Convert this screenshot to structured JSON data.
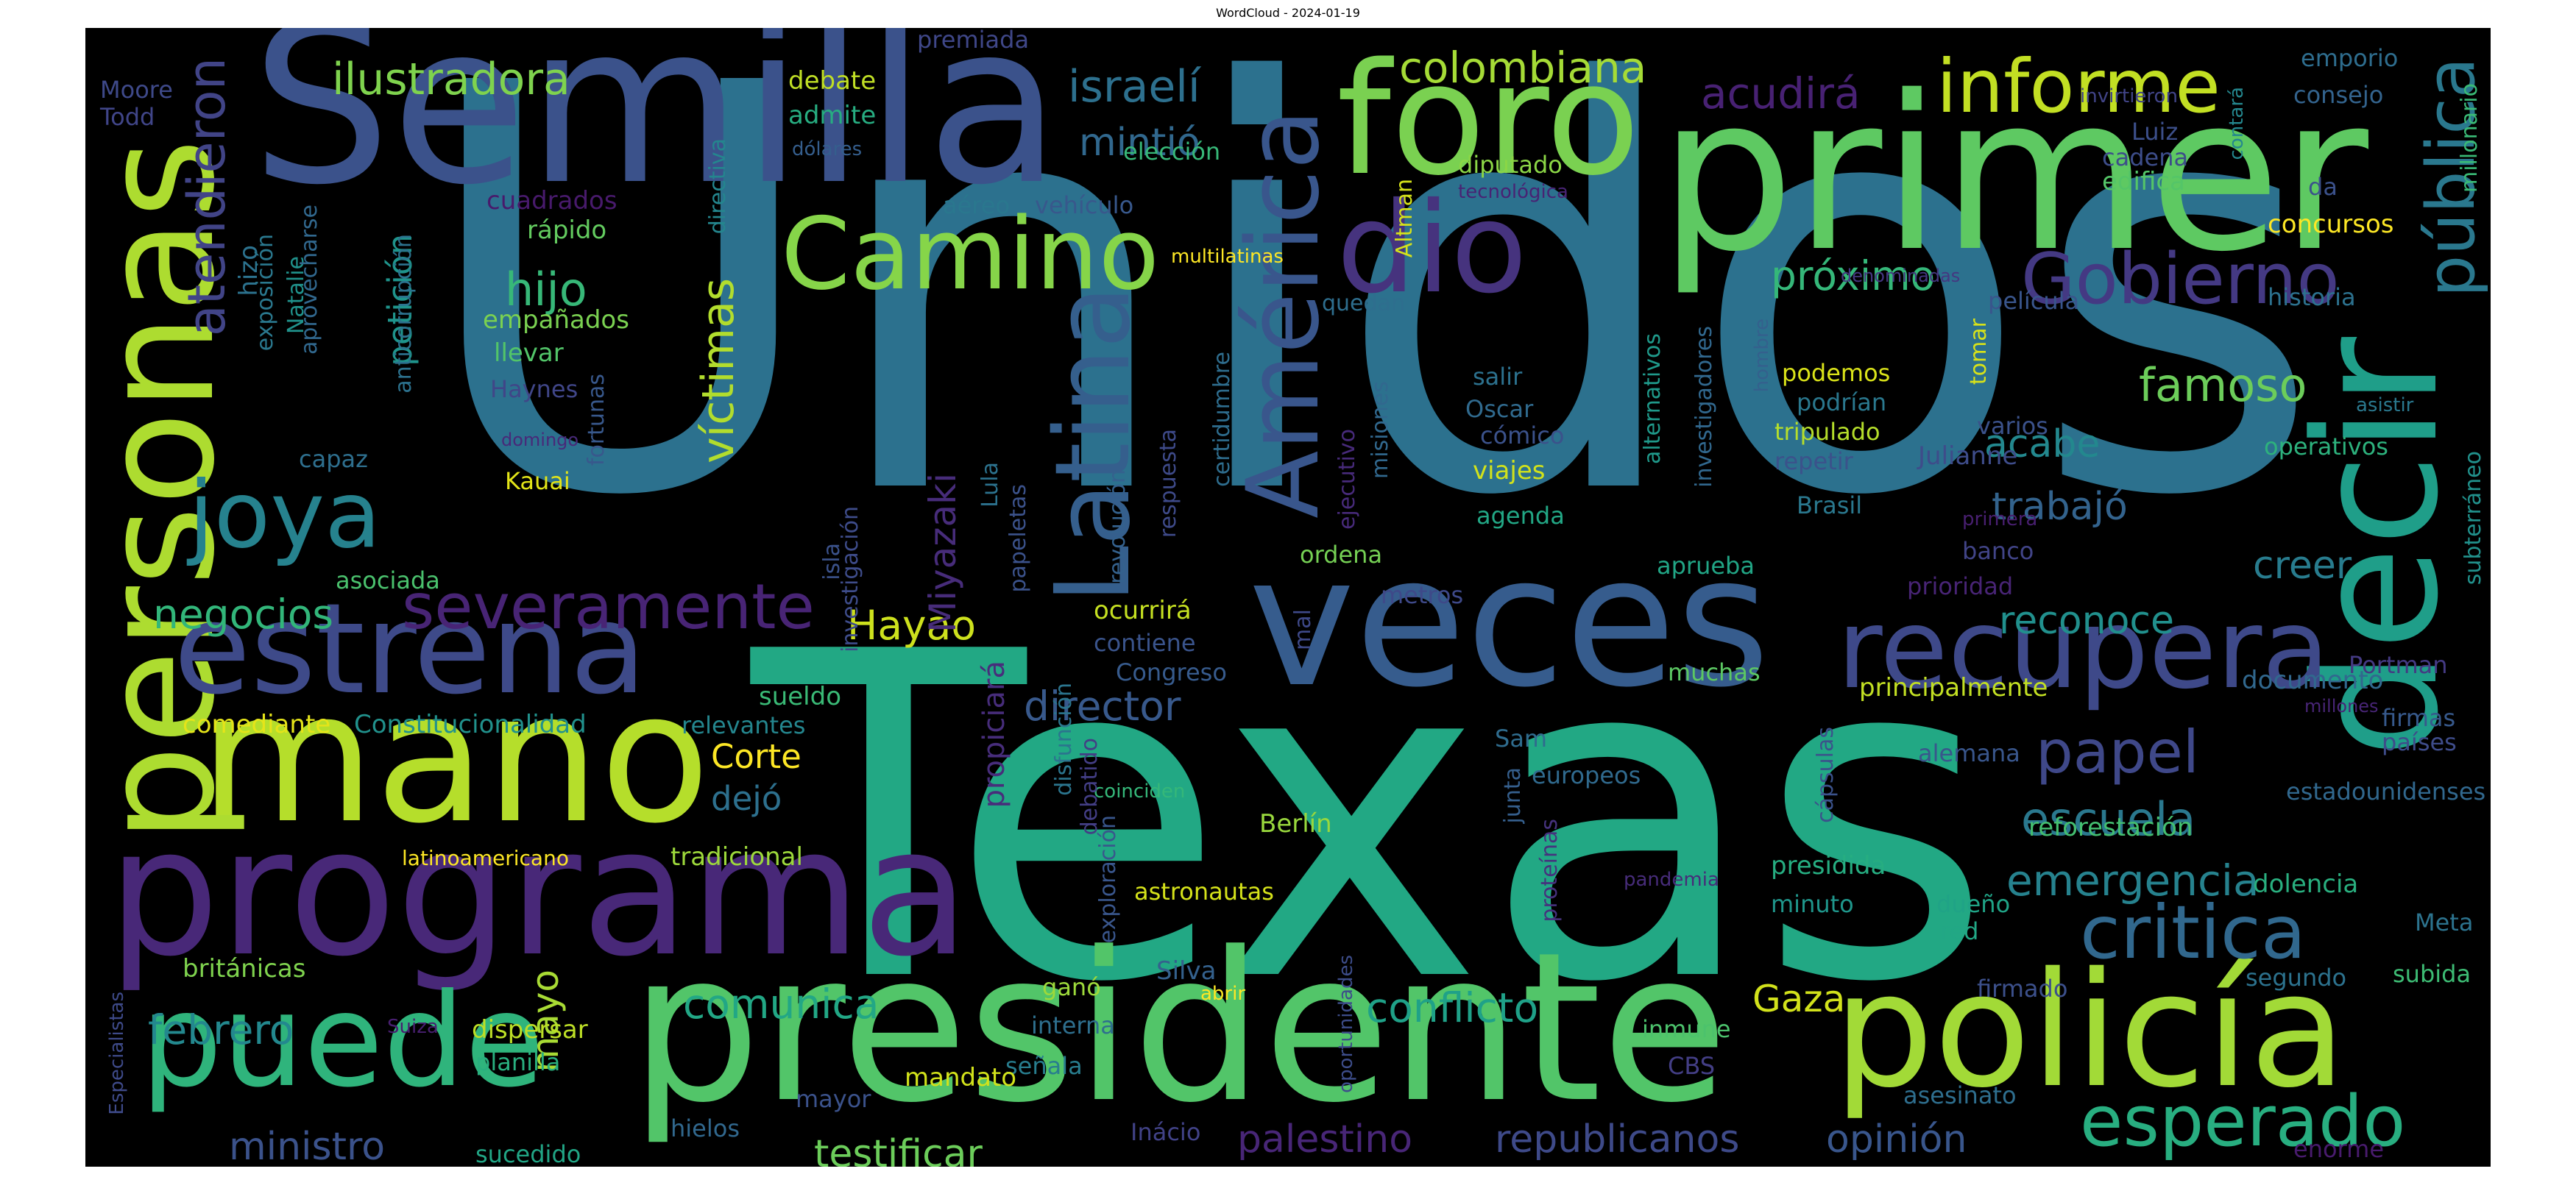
{
  "title": "WordCloud - 2024-01-19",
  "colors": {
    "background": "#000000"
  },
  "words": [
    {
      "text": "Unidos",
      "color": "#2c718e"
    },
    {
      "text": "Texas",
      "color": "#22a884"
    },
    {
      "text": "Semilla",
      "color": "#3b528b"
    },
    {
      "text": "primer",
      "color": "#5ec962"
    },
    {
      "text": "presidente",
      "color": "#52c569"
    },
    {
      "text": "programa",
      "color": "#482878"
    },
    {
      "text": "mano",
      "color": "#b5de2b"
    },
    {
      "text": "personas",
      "color": "#addc30"
    },
    {
      "text": "veces",
      "color": "#365c8d"
    },
    {
      "text": "decir",
      "color": "#1f9e89"
    },
    {
      "text": "policía",
      "color": "#a2da37"
    },
    {
      "text": "foro",
      "color": "#7ad151"
    },
    {
      "text": "estrena",
      "color": "#3e4a89"
    },
    {
      "text": "puede",
      "color": "#2fb47c"
    },
    {
      "text": "dio",
      "color": "#46337e"
    },
    {
      "text": "recupera",
      "color": "#3e4989"
    },
    {
      "text": "América",
      "color": "#39568c"
    },
    {
      "text": "Latina",
      "color": "#355f8d"
    },
    {
      "text": "Camino",
      "color": "#86d549"
    },
    {
      "text": "joya",
      "color": "#26828e"
    },
    {
      "text": "informe",
      "color": "#c2df23"
    },
    {
      "text": "Gobierno",
      "color": "#443983"
    },
    {
      "text": "pública",
      "color": "#2a788e"
    },
    {
      "text": "critica",
      "color": "#31688e"
    },
    {
      "text": "esperado",
      "color": "#28ae80"
    },
    {
      "text": "severamente",
      "color": "#482475"
    },
    {
      "text": "atendieron",
      "color": "#414487"
    },
    {
      "text": "ilustradora",
      "color": "#7fd34e"
    },
    {
      "text": "colombiana",
      "color": "#a5db36"
    },
    {
      "text": "papel",
      "color": "#3f4889"
    },
    {
      "text": "escuela",
      "color": "#2a788e"
    },
    {
      "text": "emergencia",
      "color": "#26828e"
    },
    {
      "text": "famoso",
      "color": "#6ccd5a"
    },
    {
      "text": "próximo",
      "color": "#35b779"
    },
    {
      "text": "acudirá",
      "color": "#482173"
    },
    {
      "text": "israelí",
      "color": "#2d708e"
    },
    {
      "text": "mintió",
      "color": "#31688e"
    },
    {
      "text": "hijo",
      "color": "#37b878"
    },
    {
      "text": "negocios",
      "color": "#32b67a"
    },
    {
      "text": "víctimas",
      "color": "#b2dd2d"
    },
    {
      "text": "Hayao",
      "color": "#cde11d"
    },
    {
      "text": "Miyazaki",
      "color": "#472c7a"
    },
    {
      "text": "director",
      "color": "#38598c"
    },
    {
      "text": "trabajó",
      "color": "#33638d"
    },
    {
      "text": "acabe",
      "color": "#23888e"
    },
    {
      "text": "creer",
      "color": "#287c8e"
    },
    {
      "text": "reconoce",
      "color": "#21908d"
    },
    {
      "text": "Gaza",
      "color": "#d2e21b"
    },
    {
      "text": "conflicto",
      "color": "#1fa188"
    },
    {
      "text": "comunica",
      "color": "#22a785"
    },
    {
      "text": "febrero",
      "color": "#23888e"
    },
    {
      "text": "mayo",
      "color": "#a8db34"
    },
    {
      "text": "ministro",
      "color": "#3b528b"
    },
    {
      "text": "testificar",
      "color": "#6ccd5a"
    },
    {
      "text": "palestino",
      "color": "#482677"
    },
    {
      "text": "republicanos",
      "color": "#3e4a89"
    },
    {
      "text": "opinión",
      "color": "#39568c"
    },
    {
      "text": "Corte",
      "color": "#fde725"
    },
    {
      "text": "dejó",
      "color": "#2d708e"
    },
    {
      "text": "petición",
      "color": "#1f948c"
    },
    {
      "text": "hizo",
      "color": "#2c728e"
    },
    {
      "text": "Natalie",
      "color": "#20928c"
    },
    {
      "text": "Moore",
      "color": "#3e4989"
    },
    {
      "text": "Todd",
      "color": "#404588"
    },
    {
      "text": "comediante",
      "color": "#e5e419"
    },
    {
      "text": "Constitucionalidad",
      "color": "#21918c"
    },
    {
      "text": "relevantes",
      "color": "#24868e"
    },
    {
      "text": "tradicional",
      "color": "#9dd93b"
    },
    {
      "text": "latinoamericano",
      "color": "#fde725"
    },
    {
      "text": "sueldo",
      "color": "#3aba76"
    },
    {
      "text": "asociada",
      "color": "#4ac16d"
    },
    {
      "text": "capaz",
      "color": "#2e6f8e"
    },
    {
      "text": "Kauai",
      "color": "#e2e418"
    },
    {
      "text": "Haynes",
      "color": "#404688"
    },
    {
      "text": "llevar",
      "color": "#52c569"
    },
    {
      "text": "empañados",
      "color": "#7ad151"
    },
    {
      "text": "rápido",
      "color": "#63cb5f"
    },
    {
      "text": "cuadrados",
      "color": "#481a6c"
    },
    {
      "text": "debate",
      "color": "#c0df25"
    },
    {
      "text": "admite",
      "color": "#27ad81"
    },
    {
      "text": "dólares",
      "color": "#355e8d"
    },
    {
      "text": "premiada",
      "color": "#3f4788"
    },
    {
      "text": "elección",
      "color": "#37b878"
    },
    {
      "text": "aéreo",
      "color": "#2a778e"
    },
    {
      "text": "vehículo",
      "color": "#38588c"
    },
    {
      "text": "multilatinas",
      "color": "#fde725"
    },
    {
      "text": "quedan",
      "color": "#2e6e8e"
    },
    {
      "text": "Altman",
      "color": "#d5e21a"
    },
    {
      "text": "diputado",
      "color": "#8bd646"
    },
    {
      "text": "tecnológica",
      "color": "#482374"
    },
    {
      "text": "denominadas",
      "color": "#453781"
    },
    {
      "text": "película",
      "color": "#39558c"
    },
    {
      "text": "historia",
      "color": "#2c718e"
    },
    {
      "text": "concursos",
      "color": "#fde725"
    },
    {
      "text": "edifica",
      "color": "#54c568"
    },
    {
      "text": "cadena",
      "color": "#3d4d8a"
    },
    {
      "text": "Luiz",
      "color": "#3c4f8a"
    },
    {
      "text": "invirtieron",
      "color": "#414487"
    },
    {
      "text": "consejo",
      "color": "#33638d"
    },
    {
      "text": "emporio",
      "color": "#2e6d8e"
    },
    {
      "text": "millonario",
      "color": "#3aba76"
    },
    {
      "text": "contará",
      "color": "#24878e"
    },
    {
      "text": "da",
      "color": "#3b518b"
    },
    {
      "text": "subterráneo",
      "color": "#21918c"
    },
    {
      "text": "asistir",
      "color": "#2a788e"
    },
    {
      "text": "operativos",
      "color": "#2db27d"
    },
    {
      "text": "varios",
      "color": "#3b528b"
    },
    {
      "text": "Julianne",
      "color": "#3e4c8a"
    },
    {
      "text": "primera",
      "color": "#481f70"
    },
    {
      "text": "banco",
      "color": "#414487"
    },
    {
      "text": "prioridad",
      "color": "#482475"
    },
    {
      "text": "documento",
      "color": "#31688e"
    },
    {
      "text": "Portman",
      "color": "#443a83"
    },
    {
      "text": "firmas",
      "color": "#37598c"
    },
    {
      "text": "países",
      "color": "#3e4c8a"
    },
    {
      "text": "millones",
      "color": "#482576"
    },
    {
      "text": "alemana",
      "color": "#39568c"
    },
    {
      "text": "principalmente",
      "color": "#c2df23"
    },
    {
      "text": "estadounidenses",
      "color": "#31688e"
    },
    {
      "text": "reforestación",
      "color": "#44bf70"
    },
    {
      "text": "presidida",
      "color": "#26ad81"
    },
    {
      "text": "minuto",
      "color": "#1f968b"
    },
    {
      "text": "dueño",
      "color": "#20a386"
    },
    {
      "text": "dolencia",
      "color": "#29af7f"
    },
    {
      "text": "red",
      "color": "#22a785"
    },
    {
      "text": "Meta",
      "color": "#2c738e"
    },
    {
      "text": "subida",
      "color": "#3dbc74"
    },
    {
      "text": "segundo",
      "color": "#2c728e"
    },
    {
      "text": "firmado",
      "color": "#3c508b"
    },
    {
      "text": "enorme",
      "color": "#481b6d"
    },
    {
      "text": "asesinato",
      "color": "#2e6e8e"
    },
    {
      "text": "inmune",
      "color": "#4cc26c"
    },
    {
      "text": "CBS",
      "color": "#433e85"
    },
    {
      "text": "Inácio",
      "color": "#414287"
    },
    {
      "text": "Silva",
      "color": "#34618d"
    },
    {
      "text": "abrir",
      "color": "#fde725"
    },
    {
      "text": "oportunidades",
      "color": "#3d4d8a"
    },
    {
      "text": "pandemia",
      "color": "#472c7a"
    },
    {
      "text": "proteínas",
      "color": "#46327e"
    },
    {
      "text": "junta",
      "color": "#355f8d"
    },
    {
      "text": "europeos",
      "color": "#306a8e"
    },
    {
      "text": "Sam",
      "color": "#2f6c8e"
    },
    {
      "text": "cápsulas",
      "color": "#3b528b"
    },
    {
      "text": "muchas",
      "color": "#5cc863"
    },
    {
      "text": "aprueba",
      "color": "#21a585"
    },
    {
      "text": "Brasil",
      "color": "#2a788e"
    },
    {
      "text": "repetir",
      "color": "#3b528b"
    },
    {
      "text": "tripulado",
      "color": "#b5de2b"
    },
    {
      "text": "podrían",
      "color": "#2a788e"
    },
    {
      "text": "podemos",
      "color": "#dae319"
    },
    {
      "text": "tomar",
      "color": "#d8e219"
    },
    {
      "text": "investigadores",
      "color": "#31688e"
    },
    {
      "text": "alternativos",
      "color": "#1f998a"
    },
    {
      "text": "hombre",
      "color": "#34608d"
    },
    {
      "text": "salir",
      "color": "#2c718e"
    },
    {
      "text": "Oscar",
      "color": "#306a8e"
    },
    {
      "text": "cómico",
      "color": "#3b528b"
    },
    {
      "text": "viajes",
      "color": "#d2e21b"
    },
    {
      "text": "agenda",
      "color": "#22a785"
    },
    {
      "text": "ordena",
      "color": "#75d054"
    },
    {
      "text": "metros",
      "color": "#3e4989"
    },
    {
      "text": "ocurrirá",
      "color": "#c5e021"
    },
    {
      "text": "contiene",
      "color": "#3a548c"
    },
    {
      "text": "Congreso",
      "color": "#375b8d"
    },
    {
      "text": "mal",
      "color": "#3e4989"
    },
    {
      "text": "ejecutivo",
      "color": "#472a7a"
    },
    {
      "text": "misiones",
      "color": "#31688e"
    },
    {
      "text": "respuesta",
      "color": "#3e4a89"
    },
    {
      "text": "certidumbre",
      "color": "#2e6d8e"
    },
    {
      "text": "revolución",
      "color": "#34618d"
    },
    {
      "text": "papeletas",
      "color": "#3b528b"
    },
    {
      "text": "Lula",
      "color": "#2c728e"
    },
    {
      "text": "investigación",
      "color": "#3e4c8a"
    },
    {
      "text": "isla",
      "color": "#3b528b"
    },
    {
      "text": "Berlín",
      "color": "#99d83d"
    },
    {
      "text": "coinciden",
      "color": "#35b779"
    },
    {
      "text": "astronautas",
      "color": "#d5e21a"
    },
    {
      "text": "exploración",
      "color": "#39568c"
    },
    {
      "text": "debatido",
      "color": "#433e85"
    },
    {
      "text": "disfunción",
      "color": "#2b758e"
    },
    {
      "text": "propiciará",
      "color": "#472d7b"
    },
    {
      "text": "ganó",
      "color": "#9dd93b"
    },
    {
      "text": "interna",
      "color": "#2e6f8e"
    },
    {
      "text": "señala",
      "color": "#287d8e"
    },
    {
      "text": "mayor",
      "color": "#3b528b"
    },
    {
      "text": "mandato",
      "color": "#d2e21b"
    },
    {
      "text": "hielos",
      "color": "#31688e"
    },
    {
      "text": "sucedido",
      "color": "#21a585"
    },
    {
      "text": "dispersar",
      "color": "#bddf26"
    },
    {
      "text": "planilla",
      "color": "#29af7f"
    },
    {
      "text": "británicas",
      "color": "#7fd34e"
    },
    {
      "text": "Suiza",
      "color": "#481f70"
    },
    {
      "text": "Especialistas",
      "color": "#3e4a89"
    },
    {
      "text": "fortunas",
      "color": "#38588c"
    },
    {
      "text": "domingo",
      "color": "#482979"
    },
    {
      "text": "anticorrupción",
      "color": "#2c728e"
    },
    {
      "text": "exposición",
      "color": "#2a788e"
    },
    {
      "text": "aprovecharse",
      "color": "#31688e"
    },
    {
      "text": "directiva",
      "color": "#24868e"
    }
  ]
}
